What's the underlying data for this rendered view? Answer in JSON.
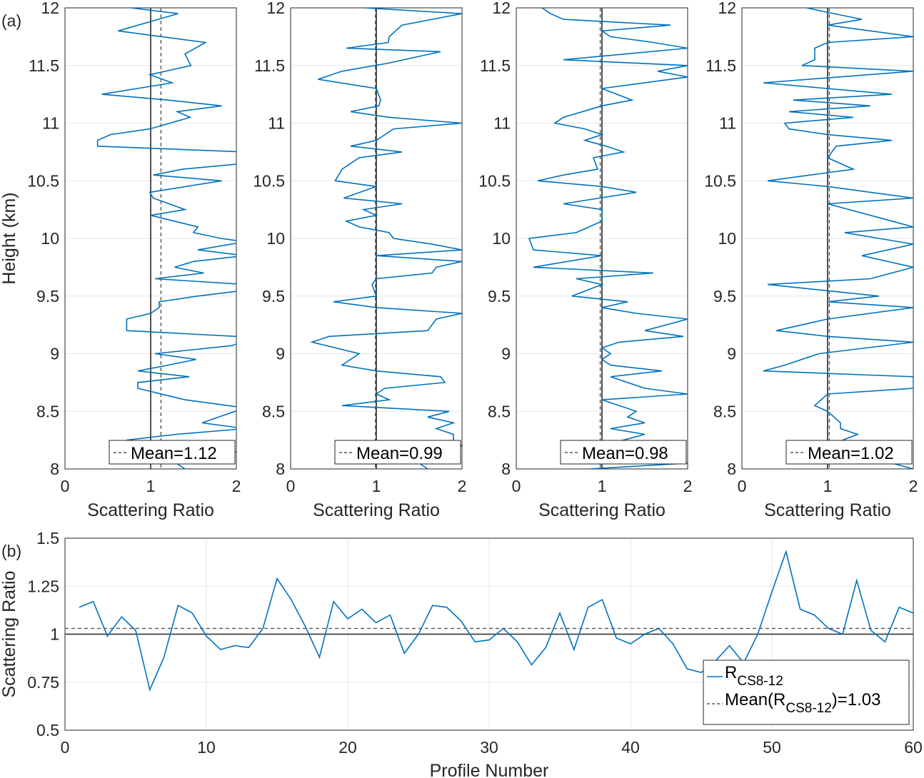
{
  "colors": {
    "series": "#0072BD",
    "reference": "#262626",
    "mean": "#555555"
  },
  "chart_data": [
    {
      "type": "line",
      "panel_label": "(a)",
      "xlabel": "Scattering Ratio",
      "ylabel": "Height (km)",
      "xlim": [
        0,
        2
      ],
      "ylim": [
        8,
        12
      ],
      "xticks": [
        "0",
        "1",
        "2"
      ],
      "yticks": [
        "8",
        "8.5",
        "9",
        "9.5",
        "10",
        "10.5",
        "11",
        "11.5",
        "12"
      ],
      "grid": true,
      "reference_line": 1,
      "mean": 1.12,
      "legend": "Mean=1.12",
      "legend_position": "bottom-right",
      "height": [
        12.0,
        11.95,
        11.8,
        11.7,
        11.6,
        11.5,
        11.42,
        11.35,
        11.25,
        11.2,
        11.15,
        11.1,
        11.05,
        10.95,
        10.9,
        10.85,
        10.8,
        10.75,
        10.65,
        10.6,
        10.55,
        10.5,
        10.4,
        10.35,
        10.25,
        10.2,
        10.1,
        10.05,
        10.0,
        9.97,
        9.9,
        9.85,
        9.8,
        9.75,
        9.7,
        9.65,
        9.6,
        9.55,
        9.5,
        9.45,
        9.4,
        9.35,
        9.3,
        9.25,
        9.2,
        9.15,
        9.1,
        9.07,
        9.0,
        8.95,
        8.9,
        8.85,
        8.8,
        8.75,
        8.7,
        8.6,
        8.53,
        8.4,
        8.35,
        8.3,
        8.25,
        8.15,
        8.05,
        8.0
      ],
      "ratio": [
        0.77,
        1.32,
        0.62,
        1.64,
        1.4,
        1.47,
        0.99,
        1.25,
        0.43,
        1.2,
        1.83,
        1.31,
        1.46,
        0.99,
        0.53,
        0.38,
        0.38,
        2.1,
        2.1,
        1.37,
        1.03,
        1.83,
        0.99,
        1.03,
        1.4,
        1.0,
        1.55,
        1.5,
        1.82,
        2.1,
        1.55,
        2.1,
        1.5,
        1.28,
        1.62,
        1.05,
        2.1,
        2.1,
        1.55,
        1.1,
        1.1,
        1.0,
        0.72,
        0.72,
        0.72,
        2.0,
        2.05,
        1.95,
        1.05,
        1.53,
        1.2,
        0.85,
        1.45,
        0.85,
        0.85,
        1.4,
        2.1,
        1.6,
        2.1,
        1.3,
        0.72,
        2.0,
        1.3,
        1.4
      ]
    },
    {
      "type": "line",
      "xlabel": "Scattering Ratio",
      "xlim": [
        0,
        2
      ],
      "ylim": [
        8,
        12
      ],
      "xticks": [
        "0",
        "1",
        "2"
      ],
      "yticks": [
        "8",
        "8.5",
        "9",
        "9.5",
        "10",
        "10.5",
        "11",
        "11.5",
        "12"
      ],
      "grid": true,
      "reference_line": 1,
      "mean": 0.99,
      "legend": "Mean=0.99",
      "legend_position": "bottom-right",
      "height": [
        12.0,
        11.95,
        11.85,
        11.75,
        11.7,
        11.65,
        11.62,
        11.52,
        11.45,
        11.38,
        11.3,
        11.2,
        11.15,
        11.1,
        11.05,
        11.0,
        10.95,
        10.85,
        10.8,
        10.75,
        10.7,
        10.6,
        10.5,
        10.45,
        10.35,
        10.3,
        10.25,
        10.2,
        10.15,
        10.1,
        10.05,
        10.0,
        9.95,
        9.9,
        9.85,
        9.8,
        9.75,
        9.7,
        9.65,
        9.6,
        9.5,
        9.45,
        9.4,
        9.35,
        9.3,
        9.2,
        9.15,
        9.1,
        9.0,
        8.9,
        8.85,
        8.8,
        8.75,
        8.7,
        8.65,
        8.6,
        8.55,
        8.5,
        8.45,
        8.4,
        8.35,
        8.3,
        8.25,
        8.2,
        8.05,
        8.0
      ],
      "ratio": [
        0.86,
        2.0,
        1.3,
        1.15,
        1.14,
        0.65,
        1.75,
        1.14,
        0.6,
        0.32,
        1.0,
        1.05,
        1.03,
        0.7,
        1.15,
        2.0,
        1.2,
        1.0,
        0.7,
        1.3,
        0.8,
        0.6,
        0.52,
        1.0,
        0.62,
        1.3,
        0.85,
        1.0,
        0.65,
        0.8,
        1.15,
        1.2,
        1.65,
        2.0,
        1.0,
        2.0,
        1.7,
        1.65,
        1.0,
        0.95,
        1.0,
        0.5,
        1.0,
        2.0,
        1.7,
        1.6,
        0.45,
        0.25,
        0.8,
        0.6,
        1.0,
        1.75,
        1.8,
        1.1,
        1.0,
        1.15,
        0.6,
        1.85,
        1.6,
        1.9,
        1.7,
        1.9,
        1.9,
        2.0,
        1.5,
        1.6
      ]
    },
    {
      "type": "line",
      "xlabel": "Scattering Ratio",
      "xlim": [
        0,
        2
      ],
      "ylim": [
        8,
        12
      ],
      "xticks": [
        "0",
        "1",
        "2"
      ],
      "yticks": [
        "8",
        "8.5",
        "9",
        "9.5",
        "10",
        "10.5",
        "11",
        "11.5",
        "12"
      ],
      "grid": true,
      "reference_line": 1,
      "mean": 0.98,
      "legend": "Mean=0.98",
      "legend_position": "bottom-right",
      "height": [
        12.0,
        11.95,
        11.9,
        11.85,
        11.8,
        11.75,
        11.7,
        11.65,
        11.55,
        11.5,
        11.45,
        11.4,
        11.3,
        11.2,
        11.15,
        11.05,
        11.0,
        10.95,
        10.9,
        10.85,
        10.8,
        10.75,
        10.7,
        10.6,
        10.55,
        10.5,
        10.45,
        10.4,
        10.3,
        10.25,
        10.15,
        10.05,
        10.0,
        9.9,
        9.85,
        9.75,
        9.7,
        9.65,
        9.6,
        9.5,
        9.45,
        9.4,
        9.35,
        9.3,
        9.2,
        9.15,
        9.1,
        9.05,
        9.0,
        8.95,
        8.9,
        8.85,
        8.8,
        8.7,
        8.65,
        8.6,
        8.5,
        8.45,
        8.4,
        8.35,
        8.3,
        8.2,
        8.05,
        8.0
      ],
      "ratio": [
        0.3,
        0.4,
        0.55,
        1.8,
        1.0,
        1.1,
        1.6,
        2.0,
        0.55,
        2.0,
        1.65,
        2.0,
        1.0,
        1.35,
        1.0,
        0.55,
        0.45,
        0.8,
        1.0,
        0.8,
        1.05,
        1.25,
        0.9,
        0.95,
        0.55,
        0.25,
        1.0,
        1.4,
        0.55,
        1.0,
        1.0,
        0.7,
        0.15,
        0.2,
        1.0,
        0.2,
        1.6,
        0.7,
        1.0,
        0.65,
        1.3,
        1.0,
        1.4,
        2.0,
        1.5,
        1.95,
        1.2,
        1.0,
        1.1,
        1.0,
        1.1,
        1.7,
        1.1,
        1.5,
        2.0,
        1.0,
        1.4,
        1.3,
        1.5,
        1.1,
        1.5,
        1.0,
        2.0,
        0.85
      ]
    },
    {
      "type": "line",
      "xlabel": "Scattering Ratio",
      "xlim": [
        0,
        2
      ],
      "ylim": [
        8,
        12
      ],
      "xticks": [
        "0",
        "1",
        "2"
      ],
      "yticks": [
        "8",
        "8.5",
        "9",
        "9.5",
        "10",
        "10.5",
        "11",
        "11.5",
        "12"
      ],
      "grid": true,
      "reference_line": 1,
      "mean": 1.02,
      "legend": "Mean=1.02",
      "legend_position": "bottom-right",
      "height": [
        12.0,
        11.9,
        11.85,
        11.75,
        11.7,
        11.65,
        11.6,
        11.55,
        11.5,
        11.45,
        11.35,
        11.25,
        11.2,
        11.15,
        11.1,
        11.05,
        11.0,
        10.95,
        10.9,
        10.85,
        10.8,
        10.7,
        10.6,
        10.5,
        10.45,
        10.35,
        10.3,
        10.1,
        10.05,
        9.95,
        9.85,
        9.75,
        9.65,
        9.6,
        9.5,
        9.45,
        9.4,
        9.3,
        9.2,
        9.15,
        9.1,
        9.0,
        8.9,
        8.85,
        8.8,
        8.7,
        8.65,
        8.55,
        8.5,
        8.4,
        8.35,
        8.3,
        8.2,
        8.0
      ],
      "ratio": [
        0.75,
        1.4,
        1.0,
        2.0,
        1.0,
        0.85,
        0.85,
        0.85,
        0.7,
        2.0,
        0.25,
        1.75,
        0.6,
        1.5,
        0.55,
        1.3,
        0.5,
        0.55,
        1.0,
        1.75,
        1.1,
        1.0,
        1.3,
        0.3,
        1.0,
        2.0,
        1.0,
        2.0,
        1.2,
        2.0,
        1.4,
        2.0,
        1.5,
        0.3,
        1.6,
        1.0,
        2.0,
        1.0,
        0.4,
        1.0,
        2.0,
        0.9,
        0.5,
        0.25,
        2.0,
        2.0,
        1.0,
        0.85,
        1.0,
        1.15,
        1.15,
        1.35,
        1.0,
        2.0
      ]
    },
    {
      "type": "line",
      "panel_label": "(b)",
      "xlabel": "Profile Number",
      "ylabel": "Scattering Ratio",
      "xlim": [
        0,
        60
      ],
      "ylim": [
        0.5,
        1.5
      ],
      "xticks": [
        "0",
        "10",
        "20",
        "30",
        "40",
        "50",
        "60"
      ],
      "yticks": [
        "0.5",
        "0.75",
        "1",
        "1.25",
        "1.5"
      ],
      "grid": true,
      "reference_line": 1,
      "mean": 1.03,
      "legend": [
        {
          "name": "R",
          "sub": "CS8-12",
          "suffix": ""
        },
        {
          "name": "Mean(R",
          "sub": "CS8-12",
          "suffix": ")=1.03"
        }
      ],
      "legend_position": "bottom-right",
      "x": [
        1,
        2,
        3,
        4,
        5,
        6,
        7,
        8,
        9,
        10,
        11,
        12,
        13,
        14,
        15,
        16,
        17,
        18,
        19,
        20,
        21,
        22,
        23,
        24,
        25,
        26,
        27,
        28,
        29,
        30,
        31,
        32,
        33,
        34,
        35,
        36,
        37,
        38,
        39,
        40,
        41,
        42,
        43,
        44,
        45,
        46,
        47,
        48,
        49,
        50,
        51,
        52,
        53,
        54,
        55,
        56,
        57,
        58,
        59,
        60
      ],
      "y": [
        1.14,
        1.17,
        0.99,
        1.09,
        1.02,
        0.71,
        0.88,
        1.15,
        1.11,
        0.99,
        0.92,
        0.94,
        0.93,
        1.03,
        1.29,
        1.18,
        1.04,
        0.88,
        1.17,
        1.08,
        1.13,
        1.06,
        1.1,
        0.9,
        1.0,
        1.15,
        1.14,
        1.07,
        0.96,
        0.97,
        1.03,
        0.96,
        0.84,
        0.93,
        1.11,
        0.92,
        1.14,
        1.18,
        0.98,
        0.95,
        1.0,
        1.03,
        0.95,
        0.82,
        0.8,
        0.86,
        0.94,
        0.85,
        1.0,
        1.22,
        1.43,
        1.13,
        1.1,
        1.03,
        1.0,
        1.28,
        1.02,
        0.96,
        1.14,
        1.11
      ]
    }
  ]
}
